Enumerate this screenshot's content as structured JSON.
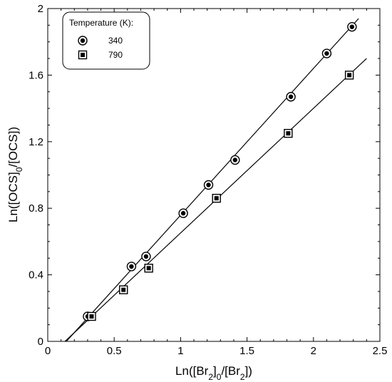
{
  "chart_data": {
    "type": "scatter",
    "xlabel": "Ln([Br2]0/[Br2])",
    "ylabel": "Ln([OCS]0/[OCS])",
    "xlim": [
      0,
      2.5
    ],
    "ylim": [
      0,
      2
    ],
    "x_ticks": [
      "0",
      "0.5",
      "1",
      "1.5",
      "2",
      "2.5"
    ],
    "y_ticks": [
      "0",
      "0.4",
      "0.8",
      "1.2",
      "1.6",
      "2"
    ],
    "legend_title": "Temperature (K):",
    "legend_position": "top-left",
    "grid": false,
    "series": [
      {
        "name": "340",
        "marker": "circle-dot",
        "x": [
          0.3,
          0.63,
          0.74,
          1.02,
          1.21,
          1.41,
          1.83,
          2.1,
          2.29
        ],
        "y": [
          0.15,
          0.45,
          0.51,
          0.77,
          0.94,
          1.09,
          1.47,
          1.73,
          1.89
        ],
        "fit": {
          "x": [
            0.14,
            2.34
          ],
          "y": [
            0.0,
            1.94
          ]
        }
      },
      {
        "name": "790",
        "marker": "square-dot",
        "x": [
          0.33,
          0.57,
          0.76,
          1.27,
          1.81,
          2.27
        ],
        "y": [
          0.15,
          0.31,
          0.44,
          0.86,
          1.25,
          1.6
        ],
        "fit": {
          "x": [
            0.13,
            2.4
          ],
          "y": [
            0.0,
            1.7
          ]
        }
      }
    ]
  }
}
